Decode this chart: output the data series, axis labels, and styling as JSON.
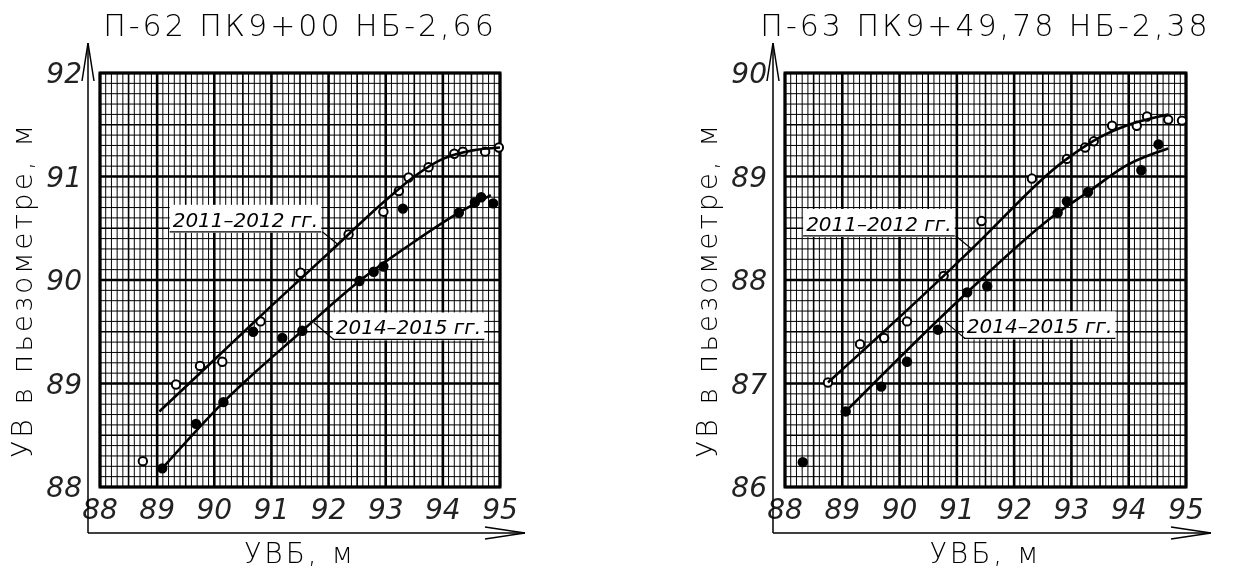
{
  "chart_data": [
    {
      "type": "scatter",
      "title": "П-62 ПК9+00 НБ-2,66",
      "xlabel": "УВБ, м",
      "ylabel": "УВ в пьезометре, м",
      "xlim": [
        88,
        95
      ],
      "ylim": [
        88,
        92
      ],
      "xticks": [
        88,
        89,
        90,
        91,
        92,
        93,
        94,
        95
      ],
      "yticks": [
        88,
        89,
        90,
        91,
        92
      ],
      "grid": true,
      "marker": "circle",
      "annotations": [
        {
          "text": "2011–2012 гг.",
          "x": 92.17,
          "y": 90.34
        },
        {
          "text": "2014–2015 гг.",
          "x": 91.74,
          "y": 89.59
        }
      ],
      "series": [
        {
          "type": "scatter",
          "color": "#ffffff",
          "x": [
            88.75,
            89.33,
            89.75,
            90.14,
            90.81,
            91.51,
            92.35,
            92.96,
            93.23,
            93.4,
            93.75,
            94.2,
            94.35,
            94.74,
            94.98
          ],
          "values": [
            88.25,
            88.99,
            89.17,
            89.21,
            89.6,
            90.07,
            90.44,
            90.66,
            90.86,
            90.99,
            91.09,
            91.22,
            91.24,
            91.24,
            91.28
          ]
        },
        {
          "type": "line",
          "color": "#000000",
          "marker": "none",
          "x": [
            89.04,
            90,
            91,
            92,
            93,
            93.5,
            94,
            94.5,
            95
          ],
          "values": [
            88.73,
            89.23,
            89.75,
            90.26,
            90.77,
            91.0,
            91.17,
            91.25,
            91.28
          ]
        },
        {
          "type": "scatter",
          "color": "#000000",
          "x": [
            89.09,
            89.68,
            90.16,
            90.68,
            91.19,
            91.54,
            92.54,
            92.79,
            92.96,
            93.3,
            94.28,
            94.56,
            94.67,
            94.88
          ],
          "values": [
            88.18,
            88.61,
            88.82,
            89.5,
            89.44,
            89.51,
            89.99,
            90.08,
            90.13,
            90.69,
            90.65,
            90.75,
            90.8,
            90.74
          ]
        },
        {
          "type": "line",
          "color": "#000000",
          "marker": "none",
          "x": [
            89.09,
            90.16,
            91.54,
            92.54,
            93.5,
            94.28,
            94.84
          ],
          "values": [
            88.18,
            88.82,
            89.51,
            89.99,
            90.37,
            90.65,
            90.82
          ]
        }
      ]
    },
    {
      "type": "scatter",
      "title": "П-63 ПК9+49,78 НБ-2,38",
      "xlabel": "УВБ, м",
      "ylabel": "УВ в пьезометре, м",
      "xlim": [
        88,
        95
      ],
      "ylim": [
        86,
        90
      ],
      "xticks": [
        88,
        89,
        90,
        91,
        92,
        93,
        94,
        95
      ],
      "yticks": [
        86,
        87,
        88,
        89,
        90
      ],
      "grid": true,
      "marker": "circle",
      "annotations": [
        {
          "text": "2011–2012 гг.",
          "x": 91.26,
          "y": 88.3
        },
        {
          "text": "2014–2015 гг.",
          "x": 90.79,
          "y": 87.6
        }
      ],
      "series": [
        {
          "type": "scatter",
          "color": "#ffffff",
          "x": [
            88.75,
            89.31,
            89.73,
            90.13,
            90.77,
            91.43,
            92.31,
            92.92,
            93.24,
            93.39,
            93.71,
            94.14,
            94.32,
            94.69,
            94.93
          ],
          "values": [
            87.01,
            87.38,
            87.44,
            87.6,
            88.04,
            88.57,
            88.98,
            89.17,
            89.28,
            89.34,
            89.49,
            89.49,
            89.58,
            89.55,
            89.54
          ]
        },
        {
          "type": "line",
          "color": "#000000",
          "marker": "none",
          "x": [
            88.75,
            90.77,
            91.26,
            92.92,
            93.5,
            94,
            94.69
          ],
          "values": [
            87.01,
            88.04,
            88.3,
            89.17,
            89.38,
            89.5,
            89.6
          ]
        },
        {
          "type": "scatter",
          "color": "#000000",
          "x": [
            88.31,
            89.06,
            89.68,
            90.13,
            90.67,
            91.18,
            91.53,
            92.76,
            92.92,
            93.29,
            94.22,
            94.52
          ],
          "values": [
            86.24,
            86.73,
            86.97,
            87.21,
            87.52,
            87.88,
            87.94,
            88.65,
            88.76,
            88.85,
            89.06,
            89.31
          ]
        },
        {
          "type": "line",
          "color": "#000000",
          "marker": "none",
          "x": [
            89.06,
            91.18,
            92.76,
            93.29,
            93.97,
            94.69
          ],
          "values": [
            86.73,
            87.88,
            88.65,
            88.85,
            89.11,
            89.27
          ]
        }
      ]
    }
  ]
}
